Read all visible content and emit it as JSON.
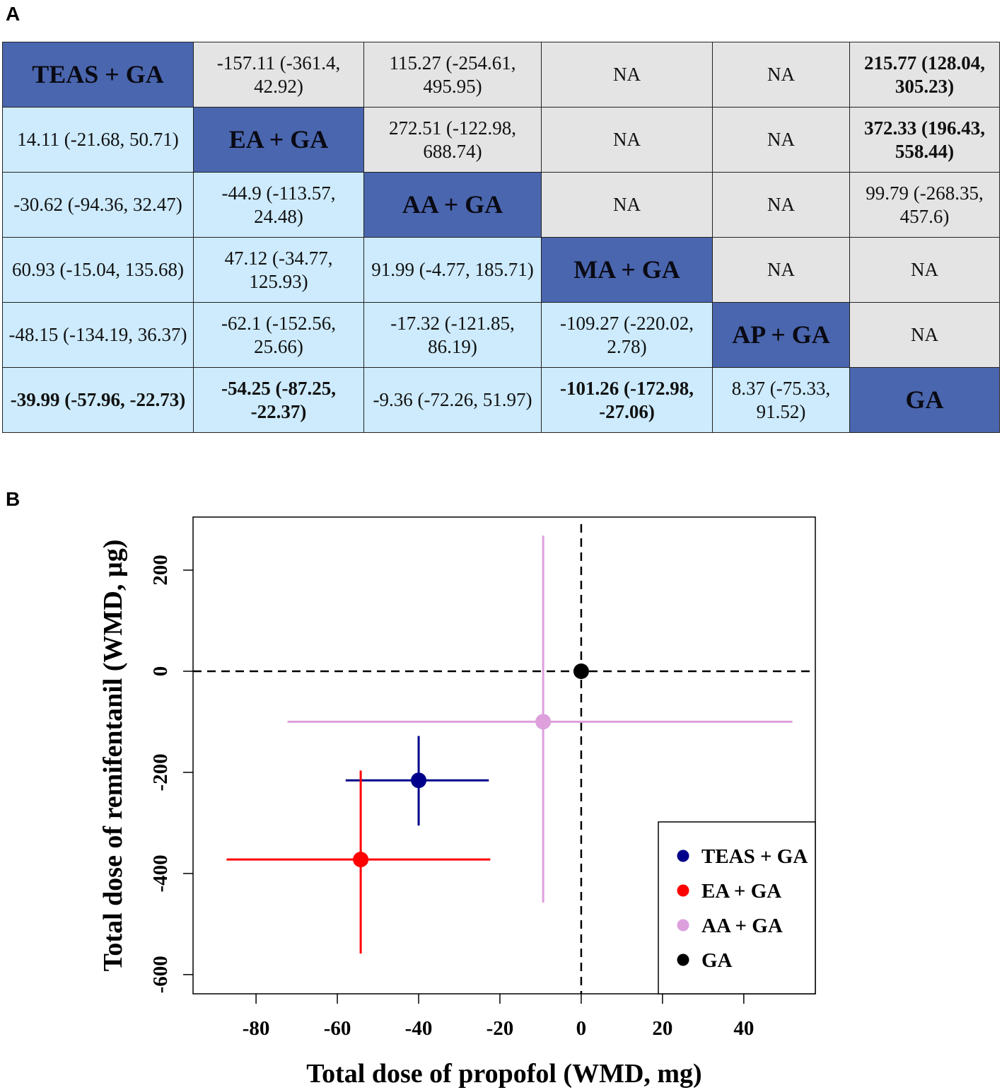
{
  "panel_a_label": "A",
  "panel_b_label": "B",
  "table": {
    "rows": [
      [
        {
          "text": "TEAS + GA",
          "type": "diag"
        },
        {
          "text": "-157.11 (-361.4, 42.92)",
          "type": "upper"
        },
        {
          "text": "115.27 (-254.61, 495.95)",
          "type": "upper"
        },
        {
          "text": "NA",
          "type": "upper"
        },
        {
          "text": "NA",
          "type": "upper"
        },
        {
          "text": "215.77 (128.04, 305.23)",
          "type": "upper",
          "bold": true
        }
      ],
      [
        {
          "text": "14.11 (-21.68, 50.71)",
          "type": "lower"
        },
        {
          "text": "EA + GA",
          "type": "diag"
        },
        {
          "text": "272.51 (-122.98, 688.74)",
          "type": "upper"
        },
        {
          "text": "NA",
          "type": "upper"
        },
        {
          "text": "NA",
          "type": "upper"
        },
        {
          "text": "372.33 (196.43, 558.44)",
          "type": "upper",
          "bold": true
        }
      ],
      [
        {
          "text": "-30.62 (-94.36, 32.47)",
          "type": "lower"
        },
        {
          "text": "-44.9 (-113.57, 24.48)",
          "type": "lower"
        },
        {
          "text": "AA + GA",
          "type": "diag"
        },
        {
          "text": "NA",
          "type": "upper"
        },
        {
          "text": "NA",
          "type": "upper"
        },
        {
          "text": "99.79 (-268.35, 457.6)",
          "type": "upper"
        }
      ],
      [
        {
          "text": "60.93 (-15.04, 135.68)",
          "type": "lower"
        },
        {
          "text": "47.12 (-34.77, 125.93)",
          "type": "lower"
        },
        {
          "text": "91.99 (-4.77, 185.71)",
          "type": "lower"
        },
        {
          "text": "MA + GA",
          "type": "diag"
        },
        {
          "text": "NA",
          "type": "upper"
        },
        {
          "text": "NA",
          "type": "upper"
        }
      ],
      [
        {
          "text": "-48.15 (-134.19, 36.37)",
          "type": "lower"
        },
        {
          "text": "-62.1 (-152.56, 25.66)",
          "type": "lower"
        },
        {
          "text": "-17.32 (-121.85, 86.19)",
          "type": "lower"
        },
        {
          "text": "-109.27 (-220.02, 2.78)",
          "type": "lower"
        },
        {
          "text": "AP + GA",
          "type": "diag"
        },
        {
          "text": "NA",
          "type": "upper"
        }
      ],
      [
        {
          "text": "-39.99 (-57.96, -22.73)",
          "type": "lower",
          "bold": true
        },
        {
          "text": "-54.25 (-87.25, -22.37)",
          "type": "lower",
          "bold": true
        },
        {
          "text": "-9.36 (-72.26, 51.97)",
          "type": "lower"
        },
        {
          "text": "-101.26 (-172.98, -27.06)",
          "type": "lower",
          "bold": true
        },
        {
          "text": "8.37 (-75.33, 91.52)",
          "type": "lower"
        },
        {
          "text": "GA",
          "type": "diag"
        }
      ]
    ],
    "colors": {
      "diag": "#4a66ae",
      "lower": "#cdebfd",
      "upper": "#e4e4e4"
    }
  },
  "chart_data": {
    "type": "scatter",
    "xlabel": "Total dose of propofol (WMD, mg)",
    "ylabel": "Total dose of remifentanil (WMD, µg)",
    "xlim": [
      -95.5,
      57.6
    ],
    "ylim": [
      -638,
      305
    ],
    "xticks": [
      -80,
      -60,
      -40,
      -20,
      0,
      20,
      40
    ],
    "yticks": [
      -600,
      -400,
      -200,
      0,
      200
    ],
    "reference_lines": {
      "x": 0,
      "y": 0,
      "style": "dashed"
    },
    "legend_position": "bottom-right",
    "series": [
      {
        "name": "TEAS + GA",
        "color": "#00008b",
        "x": -39.99,
        "x_ci": [
          -57.96,
          -22.73
        ],
        "y": -215.77,
        "y_ci": [
          -305.23,
          -128.04
        ]
      },
      {
        "name": "EA + GA",
        "color": "#ff0000",
        "x": -54.25,
        "x_ci": [
          -87.25,
          -22.37
        ],
        "y": -372.33,
        "y_ci": [
          -558.44,
          -196.43
        ]
      },
      {
        "name": "AA + GA",
        "color": "#dda0dd",
        "x": -9.36,
        "x_ci": [
          -72.26,
          51.97
        ],
        "y": -99.79,
        "y_ci": [
          -457.6,
          268.35
        ]
      },
      {
        "name": "GA",
        "color": "#000000",
        "x": 0,
        "x_ci": null,
        "y": 0,
        "y_ci": null
      }
    ]
  }
}
